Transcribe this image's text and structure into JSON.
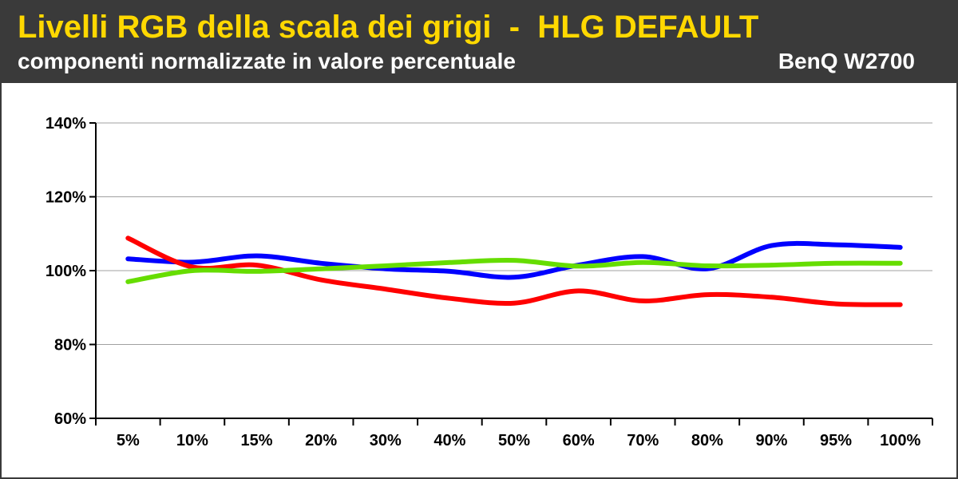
{
  "header": {
    "title": "Livelli RGB della scala dei grigi  -  HLG DEFAULT",
    "subtitle": "componenti normalizzate in valore percentuale",
    "device": "BenQ W2700"
  },
  "colors": {
    "header_bg": "#3a3a3a",
    "title": "#ffd800",
    "header_text": "#ffffff",
    "grid": "#a0a0a0",
    "red": "#ff0000",
    "green": "#66dd00",
    "blue": "#0000ff"
  },
  "chart_data": {
    "type": "line",
    "title": "Livelli RGB della scala dei grigi  -  HLG DEFAULT",
    "subtitle": "componenti normalizzate in valore percentuale",
    "categories": [
      "5%",
      "10%",
      "15%",
      "20%",
      "30%",
      "40%",
      "50%",
      "60%",
      "70%",
      "80%",
      "90%",
      "95%",
      "100%"
    ],
    "ylim": [
      60,
      140
    ],
    "yticks": [
      60,
      80,
      100,
      120,
      140
    ],
    "ytick_labels": [
      "60%",
      "80%",
      "100%",
      "120%",
      "140%"
    ],
    "grid": true,
    "legend": "none",
    "series": [
      {
        "color": "#0000ff",
        "values": [
          103.2,
          102.3,
          104.0,
          102.0,
          100.5,
          99.8,
          98.2,
          101.5,
          103.8,
          100.5,
          106.8,
          107.0,
          106.3
        ]
      },
      {
        "color": "#ff0000",
        "values": [
          108.8,
          101.0,
          101.5,
          97.5,
          95.0,
          92.5,
          91.2,
          94.5,
          91.8,
          93.5,
          92.8,
          91.0,
          90.8
        ]
      },
      {
        "color": "#66dd00",
        "values": [
          97.0,
          100.0,
          99.8,
          100.5,
          101.3,
          102.2,
          102.8,
          101.2,
          102.2,
          101.3,
          101.5,
          102.0,
          102.0
        ]
      }
    ]
  }
}
